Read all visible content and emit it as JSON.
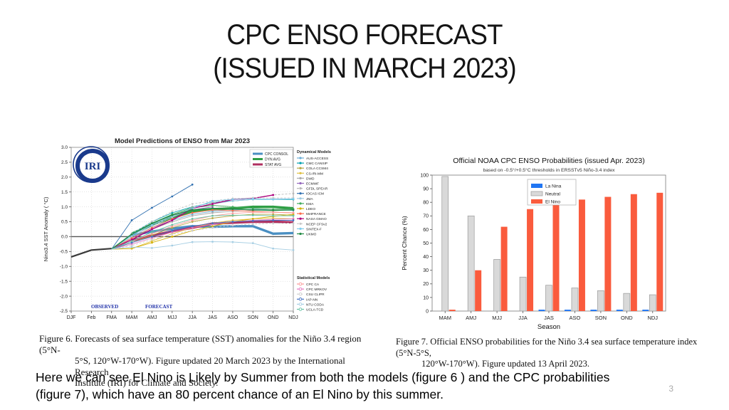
{
  "slide": {
    "title_line1": "CPC ENSO FORECAST",
    "title_line2": "(ISSUED IN MARCH 2023)",
    "body_line1": "Here we can see El Nino is Likely by Summer from both the models (figure 6 ) and the CPC probabilities",
    "body_line2": "(figure 7), which have an 80 percent chance of an El Nino by this summer.",
    "page_number": "3"
  },
  "chart_data": [
    {
      "id": "figure6",
      "type": "line",
      "title": "Model Predictions of ENSO from Mar 2023",
      "logo_text": "IRI",
      "ylabel": "Nino3.4 SST Anomaly ( °C)",
      "xlabel": "",
      "ylim": [
        -2.5,
        3.0
      ],
      "yticks": [
        3.0,
        2.5,
        2.0,
        1.5,
        1.0,
        0.5,
        0.0,
        -0.5,
        -1.0,
        -1.5,
        -2.0,
        -2.5
      ],
      "grid": true,
      "categories": [
        "DJF",
        "Feb",
        "FMA",
        "MAM",
        "AMJ",
        "MJJ",
        "JJA",
        "JAS",
        "ASO",
        "SON",
        "OND",
        "NDJ"
      ],
      "region_labels": {
        "observed": "OBSERVED",
        "forecast": "FORECAST"
      },
      "legend_titles": {
        "dynamical": "Dynamical Models",
        "statistical": "Statistical Models"
      },
      "caption_lines": [
        "Figure 6. Forecasts of sea surface temperature (SST) anomalies for the Niño 3.4 region (5°N-",
        "5°S, 120°W-170°W). Figure updated 20 March 2023 by the International Research",
        "Institute (IRI) for Climate and Society."
      ],
      "series": [
        {
          "name": "OBSERVED",
          "group": "observed",
          "color": "#3a3a3a",
          "width": 2.2,
          "values": [
            -0.68,
            -0.45,
            -0.4,
            null,
            null,
            null,
            null,
            null,
            null,
            null,
            null,
            null
          ]
        },
        {
          "name": "CPC CONSOL",
          "group": "main",
          "color": "#4a8fc2",
          "width": 3.4,
          "values": [
            null,
            null,
            null,
            0.05,
            0.17,
            0.27,
            0.35,
            0.33,
            0.35,
            0.35,
            0.1,
            0.12
          ]
        },
        {
          "name": "DYN AVG",
          "group": "main",
          "color": "#2f9e44",
          "width": 3.4,
          "values": [
            null,
            null,
            null,
            0.1,
            0.4,
            0.63,
            0.85,
            0.92,
            0.95,
            1.0,
            1.0,
            0.95
          ]
        },
        {
          "name": "STAT AVG",
          "group": "main",
          "color": "#b03060",
          "width": 3.4,
          "values": [
            null,
            null,
            null,
            -0.12,
            0.03,
            0.18,
            0.3,
            0.44,
            0.47,
            0.5,
            0.5,
            0.48
          ]
        },
        {
          "name": "AUS-ACCESS",
          "group": "dynamical",
          "color": "#6baed6",
          "width": 0.9,
          "values": [
            null,
            null,
            -0.42,
            -0.05,
            0.3,
            0.55,
            0.75,
            0.85,
            0.9,
            0.92,
            0.9,
            0.88
          ]
        },
        {
          "name": "CMC CANSIP",
          "group": "dynamical",
          "color": "#00a0b0",
          "width": 0.9,
          "values": [
            null,
            null,
            -0.42,
            0.1,
            0.5,
            0.8,
            1.0,
            1.15,
            1.2,
            1.25,
            1.25,
            1.25
          ]
        },
        {
          "name": "COLA CCSM4",
          "group": "dynamical",
          "color": "#b5a642",
          "width": 0.9,
          "values": [
            null,
            null,
            -0.42,
            -0.2,
            0.05,
            0.3,
            0.5,
            0.62,
            0.7,
            0.75,
            0.75,
            0.72
          ]
        },
        {
          "name": "CS-IRI-MM",
          "group": "dynamical",
          "color": "#e0c040",
          "width": 0.9,
          "values": [
            null,
            null,
            -0.42,
            -0.4,
            -0.15,
            0.1,
            0.3,
            0.45,
            0.55,
            0.6,
            0.62,
            0.6
          ]
        },
        {
          "name": "DWD",
          "group": "dynamical",
          "color": "#aaaaaa",
          "width": 0.9,
          "values": [
            null,
            null,
            -0.42,
            -0.1,
            0.25,
            0.5,
            0.7,
            0.8,
            0.85,
            0.88,
            0.9,
            0.9
          ]
        },
        {
          "name": "ECMWF",
          "group": "dynamical",
          "color": "#9467bd",
          "width": 0.9,
          "values": [
            null,
            null,
            -0.42,
            0.05,
            0.4,
            0.7,
            0.9,
            1.0,
            null,
            null,
            null,
            null
          ]
        },
        {
          "name": "GFDL SPEAR",
          "group": "dynamical",
          "color": "#b8b8b8",
          "width": 0.9,
          "dash": "3,2",
          "values": [
            null,
            null,
            -0.42,
            0.0,
            0.35,
            0.7,
            1.0,
            1.15,
            1.25,
            1.3,
            1.4,
            1.45
          ]
        },
        {
          "name": "IOCAS ICM",
          "group": "dynamical",
          "color": "#3070b0",
          "width": 0.9,
          "values": [
            null,
            null,
            -0.42,
            0.55,
            0.97,
            1.35,
            1.75,
            null,
            null,
            null,
            null,
            null
          ]
        },
        {
          "name": "JMA",
          "group": "dynamical",
          "color": "#9ecae1",
          "width": 0.9,
          "values": [
            null,
            null,
            -0.42,
            0.0,
            0.35,
            0.65,
            0.95,
            1.1,
            1.2,
            1.25,
            1.27,
            1.27
          ]
        },
        {
          "name": "KMA",
          "group": "dynamical",
          "color": "#41ab5d",
          "width": 0.9,
          "values": [
            null,
            null,
            -0.42,
            0.05,
            0.45,
            0.75,
            0.97,
            1.05,
            1.0,
            0.95,
            0.92,
            0.93
          ]
        },
        {
          "name": "LDEO",
          "group": "dynamical",
          "color": "#d4b106",
          "width": 0.9,
          "values": [
            null,
            null,
            -0.42,
            -0.4,
            -0.2,
            0.0,
            0.2,
            0.35,
            0.5,
            0.6,
            0.68,
            0.75
          ]
        },
        {
          "name": "MetFRANCE",
          "group": "dynamical",
          "color": "#fb6a4a",
          "width": 0.9,
          "values": [
            null,
            null,
            -0.42,
            -0.05,
            0.3,
            0.6,
            0.8,
            0.9,
            0.88,
            0.85,
            0.82,
            0.8
          ]
        },
        {
          "name": "NASA GMAO",
          "group": "dynamical",
          "color": "#ae017e",
          "width": 1.4,
          "values": [
            null,
            null,
            -0.42,
            -0.1,
            0.25,
            0.55,
            0.95,
            1.1,
            1.25,
            1.28,
            1.4,
            null
          ]
        },
        {
          "name": "NCEP CFSv2",
          "group": "dynamical",
          "color": "#c8c8c8",
          "width": 0.9,
          "dash": "3,2",
          "values": [
            null,
            null,
            -0.42,
            0.1,
            0.5,
            0.85,
            1.1,
            1.2,
            1.28,
            1.3,
            1.3,
            1.3
          ]
        },
        {
          "name": "SINTEX-F",
          "group": "dynamical",
          "color": "#7fcdee",
          "width": 0.9,
          "values": [
            null,
            null,
            -0.42,
            0.05,
            0.4,
            0.7,
            0.95,
            1.2,
            1.25,
            1.27,
            1.25,
            1.27
          ]
        },
        {
          "name": "UKMO",
          "group": "dynamical",
          "color": "#238b45",
          "width": 1.4,
          "values": [
            null,
            null,
            -0.42,
            0.08,
            0.45,
            0.72,
            0.9,
            0.95,
            0.93,
            0.9,
            0.88,
            0.9
          ]
        },
        {
          "name": "CPC CA",
          "group": "statistical",
          "color": "#fb9a99",
          "width": 0.9,
          "values": [
            null,
            null,
            -0.42,
            -0.15,
            0.1,
            0.35,
            0.55,
            0.7,
            0.78,
            0.82,
            0.82,
            0.8
          ]
        },
        {
          "name": "CPC MRKOV",
          "group": "statistical",
          "color": "#e377c2",
          "width": 0.9,
          "values": [
            null,
            null,
            -0.42,
            -0.25,
            -0.05,
            0.15,
            0.3,
            0.42,
            0.5,
            0.55,
            0.58,
            0.6
          ]
        },
        {
          "name": "CSU CLIPR",
          "group": "statistical",
          "color": "#cccccc",
          "width": 0.9,
          "dash": "3,2",
          "values": [
            null,
            null,
            -0.42,
            -0.3,
            -0.1,
            0.08,
            0.2,
            0.3,
            0.38,
            0.42,
            0.45,
            0.45
          ]
        },
        {
          "name": "IAP-NN",
          "group": "statistical",
          "color": "#4472c4",
          "width": 0.9,
          "values": [
            null,
            null,
            -0.42,
            -0.2,
            0.0,
            0.2,
            0.35,
            0.45,
            0.5,
            0.53,
            0.55,
            0.55
          ]
        },
        {
          "name": "NTU CODA",
          "group": "statistical",
          "color": "#a6cee3",
          "width": 0.9,
          "values": [
            null,
            null,
            -0.42,
            -0.35,
            -0.38,
            -0.3,
            -0.18,
            -0.17,
            -0.18,
            -0.22,
            -0.4,
            -0.45
          ]
        },
        {
          "name": "UCLA-TCD",
          "group": "statistical",
          "color": "#66c2a5",
          "width": 0.9,
          "values": [
            null,
            null,
            -0.42,
            -0.15,
            0.15,
            0.4,
            0.6,
            0.7,
            0.72,
            0.72,
            0.7,
            0.7
          ]
        }
      ]
    },
    {
      "id": "figure7",
      "type": "bar",
      "title": "Official NOAA CPC ENSO Probabilities (issued Apr. 2023)",
      "subtitle": "based on -0.5°/+0.5°C thresholds in ERSSTv5 Niño-3.4 index",
      "ylabel": "Percent Chance (%)",
      "xlabel": "Season",
      "ylim": [
        0,
        100
      ],
      "yticks": [
        0,
        10,
        20,
        30,
        40,
        50,
        60,
        70,
        80,
        90,
        100
      ],
      "grid": false,
      "legend_position": "top-center-inside",
      "categories": [
        "MAM",
        "AMJ",
        "MJJ",
        "JJA",
        "JAS",
        "ASO",
        "SON",
        "OND",
        "NDJ"
      ],
      "series": [
        {
          "name": "La Nina",
          "color": "#2176f3",
          "values": [
            0,
            0,
            0,
            0,
            1,
            1,
            1,
            1,
            1
          ]
        },
        {
          "name": "Neutral",
          "color": "#d9d9d9",
          "values": [
            99,
            70,
            38,
            25,
            19,
            17,
            15,
            13,
            12
          ]
        },
        {
          "name": "El Nino",
          "color": "#fa5b3d",
          "values": [
            1,
            30,
            62,
            75,
            80,
            82,
            84,
            86,
            87
          ]
        }
      ],
      "caption_lines": [
        "Figure 7. Official ENSO probabilities for the Niño 3.4 sea surface temperature index (5°N-5°S,",
        "120°W-170°W). Figure updated 13 April 2023."
      ]
    }
  ]
}
